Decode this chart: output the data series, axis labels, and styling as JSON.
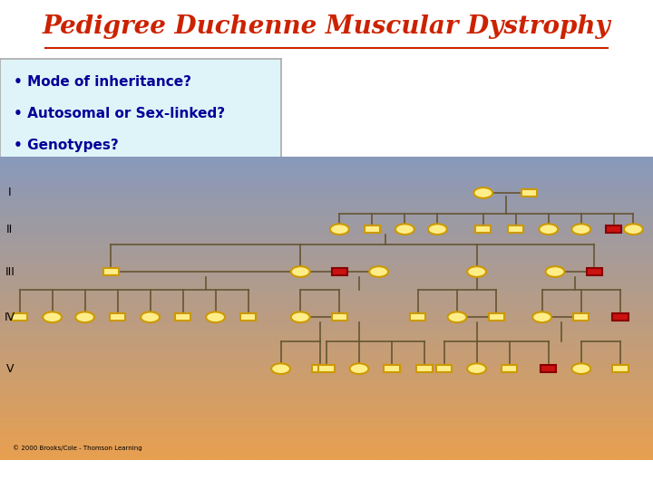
{
  "title": "Pedigree Duchenne Muscular Dystrophy",
  "title_color": "#cc2200",
  "title_bg": "#ffff99",
  "bullet_text": [
    "• Mode of inheritance?",
    "• Autosomal or Sex-linked?",
    "• Genotypes?"
  ],
  "bullet_bg": "#dff4f8",
  "bullet_color": "#000099",
  "pedigree_bg_top": "#8899bb",
  "pedigree_bg_bottom": "#e8a050",
  "normal_fill": "#ffee88",
  "normal_edge": "#cc9900",
  "affected_fill": "#cc1111",
  "affected_edge": "#880000",
  "line_color": "#665533",
  "copyright": "© 2000 Brooks/Cole - Thomson Learning",
  "roman_labels": [
    "I",
    "II",
    "III",
    "IV",
    "V"
  ]
}
